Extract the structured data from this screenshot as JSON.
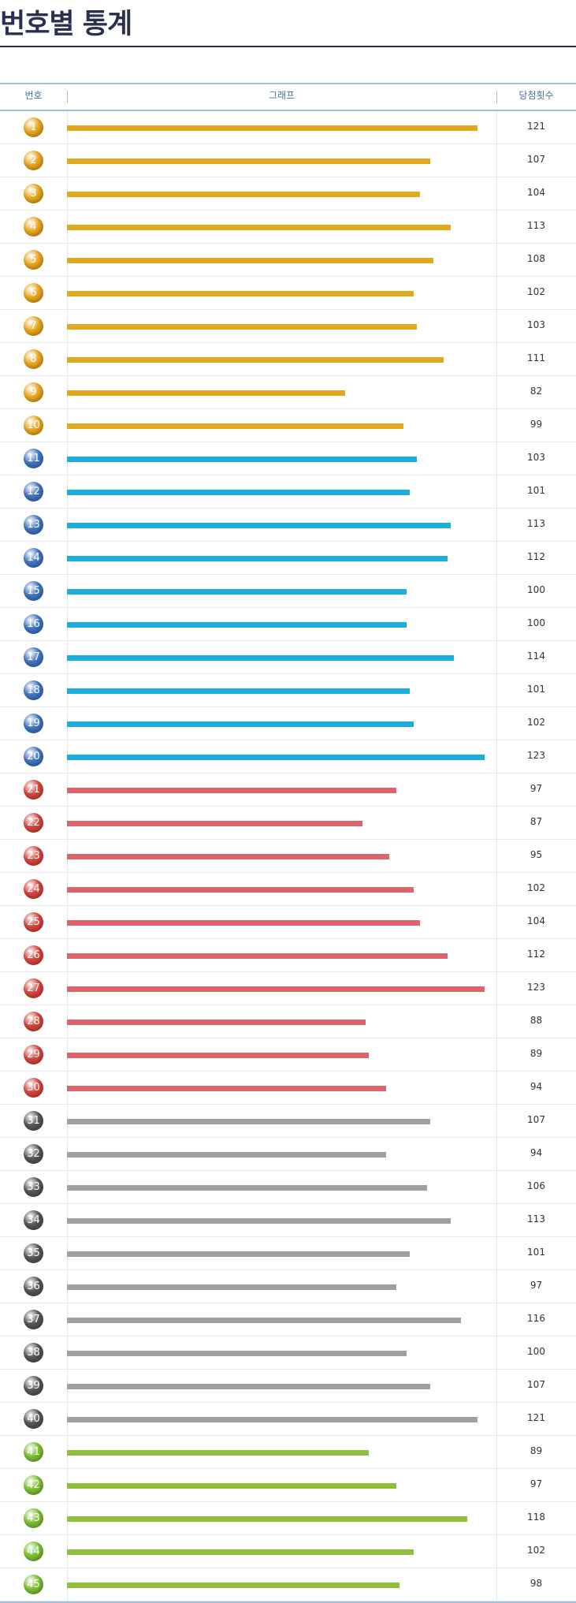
{
  "page": {
    "title": "번호별 통계"
  },
  "table": {
    "header": {
      "number": "번호",
      "graph": "그래프",
      "count": "당첨횟수"
    }
  },
  "colors": {
    "ball_groups": [
      "#e9a51c",
      "#3f73c4",
      "#d9423a",
      "#555555",
      "#7bbf2f"
    ],
    "bar_groups": [
      "#e1aa1e",
      "#1badde",
      "#e0626a",
      "#a0a0a0",
      "#8fc03b"
    ]
  },
  "chart_data": {
    "type": "bar",
    "orientation": "horizontal",
    "categories": [
      "1",
      "2",
      "3",
      "4",
      "5",
      "6",
      "7",
      "8",
      "9",
      "10",
      "11",
      "12",
      "13",
      "14",
      "15",
      "16",
      "17",
      "18",
      "19",
      "20",
      "21",
      "22",
      "23",
      "24",
      "25",
      "26",
      "27",
      "28",
      "29",
      "30",
      "31",
      "32",
      "33",
      "34",
      "35",
      "36",
      "37",
      "38",
      "39",
      "40",
      "41",
      "42",
      "43",
      "44",
      "45"
    ],
    "values": [
      121,
      107,
      104,
      113,
      108,
      102,
      103,
      111,
      82,
      99,
      103,
      101,
      113,
      112,
      100,
      100,
      114,
      101,
      102,
      123,
      97,
      87,
      95,
      102,
      104,
      112,
      123,
      88,
      89,
      94,
      107,
      94,
      106,
      113,
      101,
      97,
      116,
      100,
      107,
      121,
      89,
      97,
      118,
      102,
      98
    ],
    "xlim": [
      0,
      123
    ],
    "color_groups": "1-10, 11-20, 21-30, 31-40, 41-45"
  }
}
